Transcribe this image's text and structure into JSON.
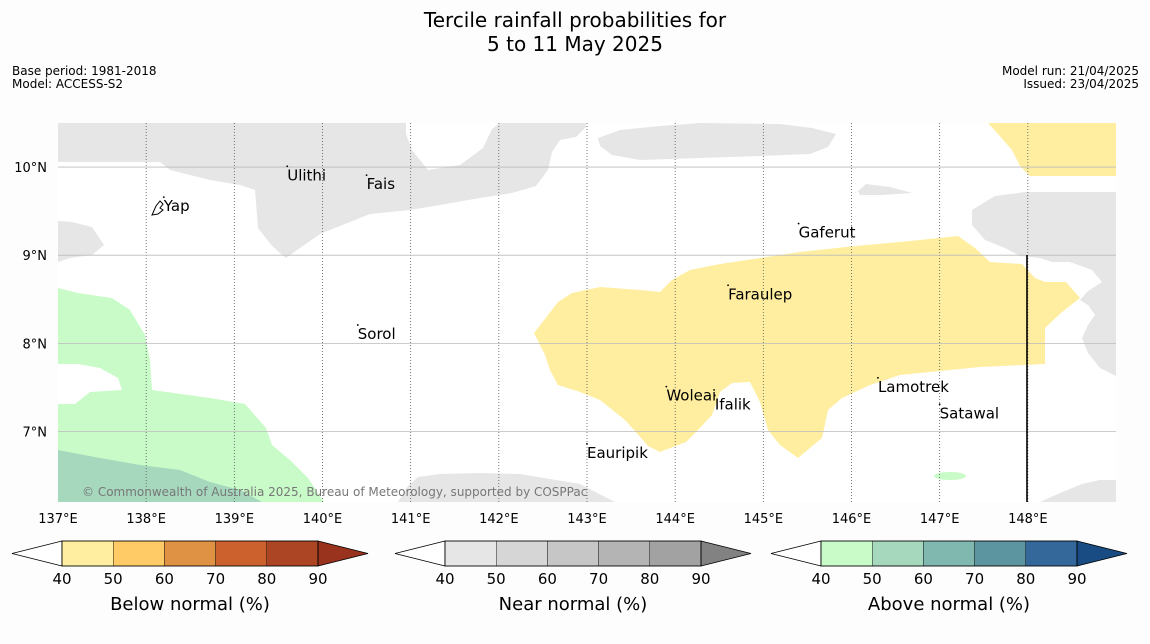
{
  "title": {
    "line1": "Tercile rainfall probabilities for",
    "line2": "5 to 11 May 2025"
  },
  "meta_left": {
    "base_period": "Base period: 1981-2018",
    "model": "Model: ACCESS-S2"
  },
  "meta_right": {
    "model_run": "Model run: 21/04/2025",
    "issued": "Issued: 23/04/2025"
  },
  "map": {
    "lon_range": [
      137.0,
      149.0
    ],
    "lat_range": [
      6.2,
      10.5
    ],
    "lon_ticks": [
      {
        "value": 137,
        "label": "137°E"
      },
      {
        "value": 138,
        "label": "138°E"
      },
      {
        "value": 139,
        "label": "139°E"
      },
      {
        "value": 140,
        "label": "140°E"
      },
      {
        "value": 141,
        "label": "141°E"
      },
      {
        "value": 142,
        "label": "142°E"
      },
      {
        "value": 143,
        "label": "143°E"
      },
      {
        "value": 144,
        "label": "144°E"
      },
      {
        "value": 145,
        "label": "145°E"
      },
      {
        "value": 146,
        "label": "146°E"
      },
      {
        "value": 147,
        "label": "147°E"
      },
      {
        "value": 148,
        "label": "148°E"
      }
    ],
    "lat_ticks": [
      {
        "value": 10,
        "label": "10°N"
      },
      {
        "value": 9,
        "label": "9°N"
      },
      {
        "value": 8,
        "label": "8°N"
      },
      {
        "value": 7,
        "label": "7°N"
      }
    ],
    "places": [
      {
        "name": "Yap",
        "lon": 138.2,
        "lat": 9.5
      },
      {
        "name": "Ulithi",
        "lon": 139.6,
        "lat": 9.85
      },
      {
        "name": "Fais",
        "lon": 140.5,
        "lat": 9.75
      },
      {
        "name": "Sorol",
        "lon": 140.4,
        "lat": 8.05
      },
      {
        "name": "Gaferut",
        "lon": 145.4,
        "lat": 9.2
      },
      {
        "name": "Faraulep",
        "lon": 144.6,
        "lat": 8.5
      },
      {
        "name": "Woleai",
        "lon": 143.9,
        "lat": 7.35
      },
      {
        "name": "Ifalik",
        "lon": 144.45,
        "lat": 7.25
      },
      {
        "name": "Lamotrek",
        "lon": 146.3,
        "lat": 7.45
      },
      {
        "name": "Satawal",
        "lon": 147.0,
        "lat": 7.15
      },
      {
        "name": "Eauripik",
        "lon": 143.0,
        "lat": 6.7
      }
    ],
    "copyright": "© Commonwealth of Australia 2025, Bureau of Meteorology, supported by COSPPac"
  },
  "legends": [
    {
      "label": "Below normal (%)",
      "ticks": [
        "40",
        "50",
        "60",
        "70",
        "80",
        "90"
      ],
      "colors": [
        "#ffffff",
        "#ffeea0",
        "#fecb66",
        "#e09244",
        "#cc612e",
        "#ab4523",
        "#99331e"
      ]
    },
    {
      "label": "Near normal (%)",
      "ticks": [
        "40",
        "50",
        "60",
        "70",
        "80",
        "90"
      ],
      "colors": [
        "#ffffff",
        "#e6e6e6",
        "#d6d6d6",
        "#c6c6c6",
        "#b4b4b4",
        "#a2a2a2",
        "#828282"
      ]
    },
    {
      "label": "Above normal (%)",
      "ticks": [
        "40",
        "50",
        "60",
        "70",
        "80",
        "90"
      ],
      "colors": [
        "#ffffff",
        "#c9fbc8",
        "#a6d8bd",
        "#80b8b0",
        "#5c949f",
        "#35689a",
        "#184c82"
      ]
    }
  ]
}
